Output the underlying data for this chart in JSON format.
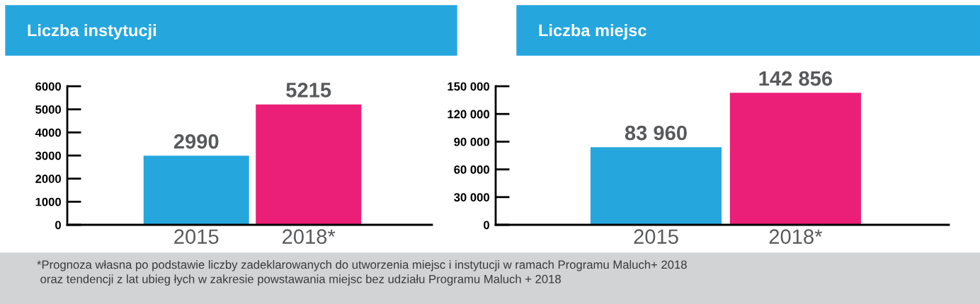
{
  "chart_data": [
    {
      "type": "bar",
      "title": "Liczba instytucji",
      "categories": [
        "2015",
        "2018*"
      ],
      "values": [
        2990,
        5215
      ],
      "colors": [
        "#25a7de",
        "#ec1f78"
      ],
      "ylim": [
        0,
        6000
      ],
      "yticks": [
        0,
        1000,
        2000,
        3000,
        4000,
        5000,
        6000
      ],
      "data_labels": true,
      "grid": false,
      "legend": false,
      "annotations": [
        "*Prognoza własna po podstawie liczby zadeklarowanych do utworzenia miejsc i instytucji w ramach Programu Maluch+ 2018\n oraz tendencji z lat ubieg łych w zakresie powstawania miejsc bez udziału Programu Maluch + 2018"
      ]
    },
    {
      "type": "bar",
      "title": "Liczba miejsc",
      "categories": [
        "2015",
        "2018*"
      ],
      "values": [
        83960,
        142856
      ],
      "colors": [
        "#25a7de",
        "#ec1f78"
      ],
      "ylim": [
        0,
        150000
      ],
      "yticks": [
        0,
        {
          "value": 30000,
          "label": "30 000"
        },
        {
          "value": 60000,
          "label": "60 000"
        },
        {
          "value": 90000,
          "label": "90 000"
        },
        {
          "value": 120000,
          "label": "120 000"
        },
        {
          "value": 150000,
          "label": "150 000"
        }
      ],
      "value_labels": [
        "83 960",
        "142 856"
      ],
      "grid": false,
      "legend": false
    }
  ]
}
